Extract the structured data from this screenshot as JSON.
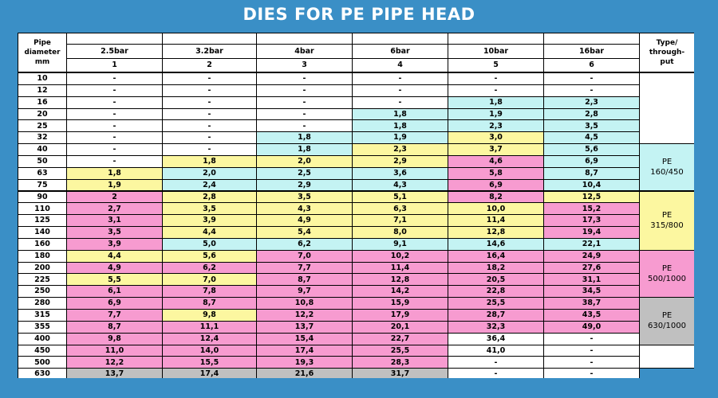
{
  "title": "DIES FOR PE PIPE HEAD",
  "header": {
    "pipe_diameter": [
      "Pipe",
      "diameter",
      "mm"
    ],
    "type_label": [
      "Type/",
      "through-",
      "put"
    ],
    "columns": [
      {
        "pressure": "2.5bar",
        "number": "1"
      },
      {
        "pressure": "3.2bar",
        "number": "2"
      },
      {
        "pressure": "4bar",
        "number": "3"
      },
      {
        "pressure": "6bar",
        "number": "4"
      },
      {
        "pressure": "10bar",
        "number": "5"
      },
      {
        "pressure": "16bar",
        "number": "6"
      }
    ]
  },
  "colors": {
    "white": "#ffffff",
    "cyan": "#c4f3f3",
    "yellow": "#fcf7a0",
    "pink": "#f79bd0",
    "gray": "#c0c0c0",
    "blue": "#3a8fc6"
  },
  "rows": [
    {
      "d": "10",
      "values": [
        "-",
        "-",
        "-",
        "-",
        "-",
        "-"
      ],
      "colors": [
        "white",
        "white",
        "white",
        "white",
        "white",
        "white"
      ]
    },
    {
      "d": "12",
      "values": [
        "-",
        "-",
        "-",
        "-",
        "-",
        "-"
      ],
      "colors": [
        "white",
        "white",
        "white",
        "white",
        "white",
        "white"
      ]
    },
    {
      "d": "16",
      "values": [
        "-",
        "-",
        "-",
        "-",
        "1,8",
        "2,3"
      ],
      "colors": [
        "white",
        "white",
        "white",
        "white",
        "cyan",
        "cyan"
      ]
    },
    {
      "d": "20",
      "values": [
        "-",
        "-",
        "-",
        "1,8",
        "1,9",
        "2,8"
      ],
      "colors": [
        "white",
        "white",
        "white",
        "cyan",
        "cyan",
        "cyan"
      ]
    },
    {
      "d": "25",
      "values": [
        "-",
        "-",
        "-",
        "1,8",
        "2,3",
        "3,5"
      ],
      "colors": [
        "white",
        "white",
        "white",
        "cyan",
        "cyan",
        "cyan"
      ]
    },
    {
      "d": "32",
      "values": [
        "-",
        "-",
        "1,8",
        "1,9",
        "3,0",
        "4,5"
      ],
      "colors": [
        "white",
        "white",
        "cyan",
        "cyan",
        "yellow",
        "cyan"
      ]
    },
    {
      "d": "40",
      "values": [
        "-",
        "-",
        "1,8",
        "2,3",
        "3,7",
        "5,6"
      ],
      "colors": [
        "white",
        "white",
        "cyan",
        "yellow",
        "yellow",
        "cyan"
      ]
    },
    {
      "d": "50",
      "values": [
        "-",
        "1,8",
        "2,0",
        "2,9",
        "4,6",
        "6,9"
      ],
      "colors": [
        "white",
        "yellow",
        "yellow",
        "yellow",
        "pink",
        "cyan"
      ]
    },
    {
      "d": "63",
      "values": [
        "1,8",
        "2,0",
        "2,5",
        "3,6",
        "5,8",
        "8,7"
      ],
      "colors": [
        "yellow",
        "cyan",
        "cyan",
        "cyan",
        "pink",
        "cyan"
      ]
    },
    {
      "d": "75",
      "values": [
        "1,9",
        "2,4",
        "2,9",
        "4,3",
        "6,9",
        "10,4"
      ],
      "colors": [
        "yellow",
        "cyan",
        "cyan",
        "cyan",
        "pink",
        "cyan"
      ]
    },
    {
      "d": "90",
      "values": [
        "2",
        "2,8",
        "3,5",
        "5,1",
        "8,2",
        "12,5"
      ],
      "colors": [
        "pink",
        "yellow",
        "yellow",
        "yellow",
        "pink",
        "yellow"
      ]
    },
    {
      "d": "110",
      "values": [
        "2,7",
        "3,5",
        "4,3",
        "6,3",
        "10,0",
        "15,2"
      ],
      "colors": [
        "pink",
        "yellow",
        "yellow",
        "yellow",
        "yellow",
        "pink"
      ]
    },
    {
      "d": "125",
      "values": [
        "3,1",
        "3,9",
        "4,9",
        "7,1",
        "11,4",
        "17,3"
      ],
      "colors": [
        "pink",
        "yellow",
        "yellow",
        "yellow",
        "yellow",
        "pink"
      ]
    },
    {
      "d": "140",
      "values": [
        "3,5",
        "4,4",
        "5,4",
        "8,0",
        "12,8",
        "19,4"
      ],
      "colors": [
        "pink",
        "yellow",
        "yellow",
        "yellow",
        "yellow",
        "pink"
      ]
    },
    {
      "d": "160",
      "values": [
        "3,9",
        "5,0",
        "6,2",
        "9,1",
        "14,6",
        "22,1"
      ],
      "colors": [
        "pink",
        "cyan",
        "cyan",
        "cyan",
        "cyan",
        "cyan"
      ]
    },
    {
      "d": "180",
      "values": [
        "4,4",
        "5,6",
        "7,0",
        "10,2",
        "16,4",
        "24,9"
      ],
      "colors": [
        "yellow",
        "yellow",
        "pink",
        "pink",
        "pink",
        "pink"
      ]
    },
    {
      "d": "200",
      "values": [
        "4,9",
        "6,2",
        "7,7",
        "11,4",
        "18,2",
        "27,6"
      ],
      "colors": [
        "pink",
        "pink",
        "pink",
        "pink",
        "pink",
        "pink"
      ]
    },
    {
      "d": "225",
      "values": [
        "5,5",
        "7,0",
        "8,7",
        "12,8",
        "20,5",
        "31,1"
      ],
      "colors": [
        "yellow",
        "yellow",
        "pink",
        "pink",
        "pink",
        "pink"
      ]
    },
    {
      "d": "250",
      "values": [
        "6,1",
        "7,8",
        "9,7",
        "14,2",
        "22,8",
        "34,5"
      ],
      "colors": [
        "pink",
        "pink",
        "pink",
        "pink",
        "pink",
        "pink"
      ]
    },
    {
      "d": "280",
      "values": [
        "6,9",
        "8,7",
        "10,8",
        "15,9",
        "25,5",
        "38,7"
      ],
      "colors": [
        "pink",
        "pink",
        "pink",
        "pink",
        "pink",
        "pink"
      ]
    },
    {
      "d": "315",
      "values": [
        "7,7",
        "9,8",
        "12,2",
        "17,9",
        "28,7",
        "43,5"
      ],
      "colors": [
        "pink",
        "yellow",
        "pink",
        "pink",
        "pink",
        "pink"
      ]
    },
    {
      "d": "355",
      "values": [
        "8,7",
        "11,1",
        "13,7",
        "20,1",
        "32,3",
        "49,0"
      ],
      "colors": [
        "pink",
        "pink",
        "pink",
        "pink",
        "pink",
        "pink"
      ]
    },
    {
      "d": "400",
      "values": [
        "9,8",
        "12,4",
        "15,4",
        "22,7",
        "36,4",
        "-"
      ],
      "colors": [
        "pink",
        "pink",
        "pink",
        "pink",
        "white",
        "white"
      ]
    },
    {
      "d": "450",
      "values": [
        "11,0",
        "14,0",
        "17,4",
        "25,5",
        "41,0",
        "-"
      ],
      "colors": [
        "pink",
        "pink",
        "pink",
        "pink",
        "white",
        "white"
      ]
    },
    {
      "d": "500",
      "values": [
        "12,2",
        "15,5",
        "19,3",
        "28,3",
        "-",
        "-"
      ],
      "colors": [
        "pink",
        "pink",
        "pink",
        "pink",
        "white",
        "white"
      ]
    },
    {
      "d": "630",
      "values": [
        "13,7",
        "17,4",
        "21,6",
        "31,7",
        "-",
        "-"
      ],
      "colors": [
        "gray",
        "gray",
        "gray",
        "gray",
        "white",
        "white"
      ]
    }
  ],
  "type_groups": [
    {
      "label": [
        "PE",
        "160/450"
      ],
      "rows": [
        6,
        9
      ],
      "color": "cyan"
    },
    {
      "label": [
        "PE",
        "315/800"
      ],
      "rows": [
        10,
        14
      ],
      "color": "yellow"
    },
    {
      "label": [
        "PE",
        "500/1000"
      ],
      "rows": [
        15,
        18
      ],
      "color": "pink"
    },
    {
      "label": [
        "PE",
        "630/1000"
      ],
      "rows": [
        19,
        22
      ],
      "color": "gray"
    }
  ]
}
